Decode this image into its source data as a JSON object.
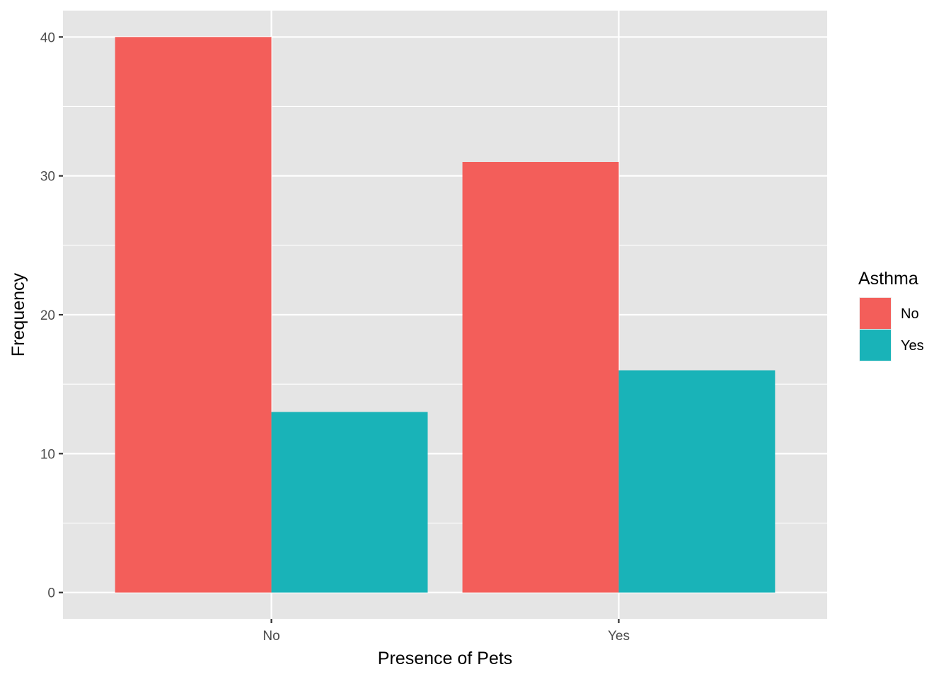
{
  "chart_data": {
    "type": "bar",
    "categories": [
      "No",
      "Yes"
    ],
    "series": [
      {
        "name": "No",
        "values": [
          40,
          31
        ],
        "color": "#F35E5A"
      },
      {
        "name": "Yes",
        "values": [
          13,
          16
        ],
        "color": "#19B3B8"
      }
    ],
    "xlabel": "Presence of Pets",
    "ylabel": "Frequency",
    "legend_title": "Asthma",
    "legend_position": "right",
    "ylim": [
      -1.9,
      41.9
    ],
    "yticks": [
      0,
      10,
      20,
      30,
      40
    ],
    "grid": true,
    "panel_background": "#E5E5E5",
    "grid_color": "#FFFFFF"
  }
}
